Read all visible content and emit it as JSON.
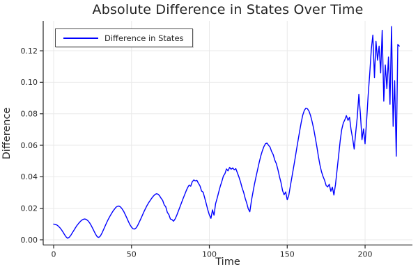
{
  "chart": {
    "title": "Absolute Difference in States Over Time",
    "xlabel": "Time",
    "ylabel": "Difference",
    "legend_label": "Difference in States"
  },
  "colors": {
    "line": "#0000ff",
    "grid": "#e9e9e9",
    "spine": "#262626",
    "tick_text": "#262626",
    "legend_border": "#4d4d4d",
    "background": "#ffffff"
  },
  "chart_data": {
    "type": "line",
    "title": "Absolute Difference in States Over Time",
    "xlabel": "Time",
    "ylabel": "Difference",
    "legend": [
      "Difference in States"
    ],
    "legend_position": "top-left",
    "grid": true,
    "xlim": [
      -6.71,
      230.4
    ],
    "ylim": [
      -0.0033,
      0.139
    ],
    "xticks": {
      "values": [
        0,
        50,
        100,
        150,
        200
      ],
      "labels": [
        "0",
        "50",
        "100",
        "150",
        "200"
      ]
    },
    "yticks": {
      "values": [
        0.0,
        0.02,
        0.04,
        0.06,
        0.08,
        0.1,
        0.12
      ],
      "labels": [
        "0.00",
        "0.02",
        "0.04",
        "0.06",
        "0.08",
        "0.10",
        "0.12"
      ]
    },
    "series": [
      {
        "name": "Difference in States",
        "color": "#0000ff",
        "t0": 0,
        "dt": 1,
        "values": [
          0.01,
          0.0098,
          0.0094,
          0.0087,
          0.0077,
          0.0064,
          0.0049,
          0.0033,
          0.0018,
          0.001,
          0.0016,
          0.0028,
          0.0044,
          0.006,
          0.0076,
          0.0091,
          0.0104,
          0.0115,
          0.0124,
          0.013,
          0.0132,
          0.0129,
          0.0121,
          0.0109,
          0.0093,
          0.0074,
          0.0054,
          0.0034,
          0.0019,
          0.0015,
          0.0024,
          0.0042,
          0.0063,
          0.0086,
          0.0108,
          0.0128,
          0.0147,
          0.0164,
          0.018,
          0.0194,
          0.0206,
          0.0213,
          0.0214,
          0.0208,
          0.0196,
          0.018,
          0.016,
          0.0138,
          0.0116,
          0.0096,
          0.008,
          0.007,
          0.0068,
          0.0076,
          0.0092,
          0.0112,
          0.0134,
          0.0156,
          0.0178,
          0.0199,
          0.0218,
          0.0235,
          0.025,
          0.0264,
          0.0277,
          0.0287,
          0.0292,
          0.029,
          0.028,
          0.0264,
          0.025,
          0.0222,
          0.021,
          0.0174,
          0.016,
          0.0132,
          0.0128,
          0.0118,
          0.0132,
          0.0154,
          0.018,
          0.0206,
          0.0232,
          0.0258,
          0.0284,
          0.0308,
          0.033,
          0.0348,
          0.034,
          0.0368,
          0.038,
          0.0374,
          0.0378,
          0.0358,
          0.0342,
          0.031,
          0.0302,
          0.0266,
          0.0228,
          0.019,
          0.0158,
          0.0136,
          0.019,
          0.0156,
          0.023,
          0.0264,
          0.0302,
          0.034,
          0.037,
          0.0404,
          0.042,
          0.045,
          0.0438,
          0.046,
          0.0448,
          0.0456,
          0.0444,
          0.0452,
          0.0424,
          0.0398,
          0.0368,
          0.033,
          0.0302,
          0.0264,
          0.0232,
          0.0196,
          0.0178,
          0.0248,
          0.0302,
          0.0354,
          0.0402,
          0.0446,
          0.0492,
          0.0532,
          0.0564,
          0.0592,
          0.061,
          0.0614,
          0.06,
          0.0588,
          0.056,
          0.054,
          0.0506,
          0.0484,
          0.0446,
          0.0402,
          0.0364,
          0.0312,
          0.0286,
          0.0304,
          0.0254,
          0.0282,
          0.0342,
          0.0398,
          0.0454,
          0.0514,
          0.0574,
          0.0632,
          0.0692,
          0.0746,
          0.0792,
          0.0822,
          0.0836,
          0.0832,
          0.0816,
          0.0788,
          0.075,
          0.0704,
          0.065,
          0.0592,
          0.053,
          0.0476,
          0.0432,
          0.0402,
          0.0378,
          0.0344,
          0.0336,
          0.0352,
          0.0308,
          0.0334,
          0.0284,
          0.0352,
          0.0442,
          0.0532,
          0.0628,
          0.07,
          0.0742,
          0.0762,
          0.0788,
          0.0758,
          0.0778,
          0.07,
          0.0642,
          0.0576,
          0.0682,
          0.0782,
          0.0924,
          0.08,
          0.0636,
          0.0704,
          0.061,
          0.076,
          0.092,
          0.106,
          0.121,
          0.13,
          0.103,
          0.126,
          0.114,
          0.123,
          0.106,
          0.133,
          0.088,
          0.111,
          0.096,
          0.116,
          0.086,
          0.1354,
          0.072,
          0.101,
          0.053,
          0.124,
          0.123
        ]
      }
    ]
  }
}
